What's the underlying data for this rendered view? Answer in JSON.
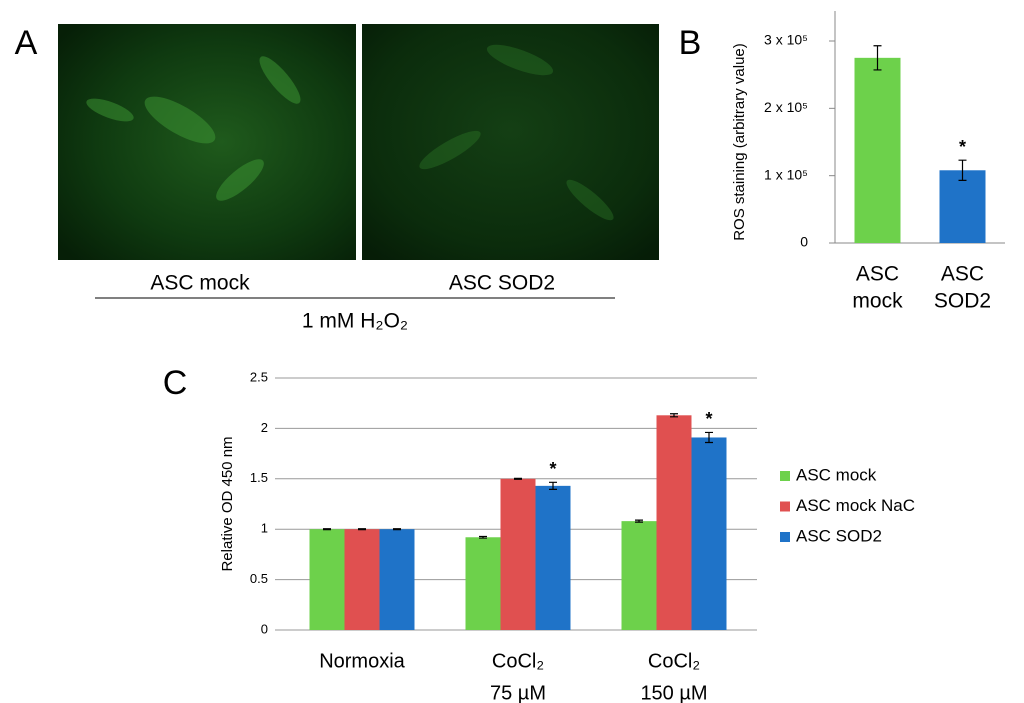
{
  "panel_a": {
    "label": "A",
    "images": [
      "ASC mock",
      "ASC SOD2"
    ],
    "treatment": "1 mM H₂O₂"
  },
  "chart_data": [
    {
      "type": "bar",
      "label": "B",
      "ylabel": "ROS staining (arbitrary value)",
      "categories": [
        [
          "ASC",
          "mock"
        ],
        [
          "ASC",
          "SOD2"
        ]
      ],
      "values": [
        275000,
        108000
      ],
      "errors": [
        18000,
        15000
      ],
      "colors": [
        "#6dd14b",
        "#1f73c8"
      ],
      "significance": [
        null,
        "*"
      ],
      "ylim": [
        0,
        300000
      ],
      "yticks": [
        0,
        {
          "value": 100000,
          "label": "1 x 10⁵"
        },
        {
          "value": 200000,
          "label": "2 x 10⁵"
        },
        {
          "value": 300000,
          "label": "3 x 10⁵"
        }
      ],
      "grid": false
    },
    {
      "type": "grouped_bar",
      "label": "C",
      "ylabel": "Relative OD 450 nm",
      "categories": [
        [
          "Normoxia"
        ],
        [
          "CoCl₂",
          "75 µM"
        ],
        [
          "CoCl₂",
          "150 µM"
        ]
      ],
      "series": [
        {
          "name": "ASC mock",
          "color": "#6dd14b",
          "values": [
            1.0,
            0.92,
            1.08
          ],
          "errors": [
            0.005,
            0.008,
            0.01
          ]
        },
        {
          "name": "ASC mock NaC",
          "color": "#e05050",
          "values": [
            1.0,
            1.5,
            2.13
          ],
          "errors": [
            0.005,
            0.005,
            0.015
          ]
        },
        {
          "name": "ASC SOD2",
          "color": "#1f73c8",
          "values": [
            1.0,
            1.43,
            1.91
          ],
          "errors": [
            0.005,
            0.035,
            0.05
          ],
          "significance": [
            null,
            "*",
            "*"
          ]
        }
      ],
      "ylim": [
        0,
        2.5
      ],
      "yticks": [
        0,
        0.5,
        1,
        1.5,
        2,
        2.5
      ],
      "grid": true,
      "legend": "right"
    }
  ]
}
